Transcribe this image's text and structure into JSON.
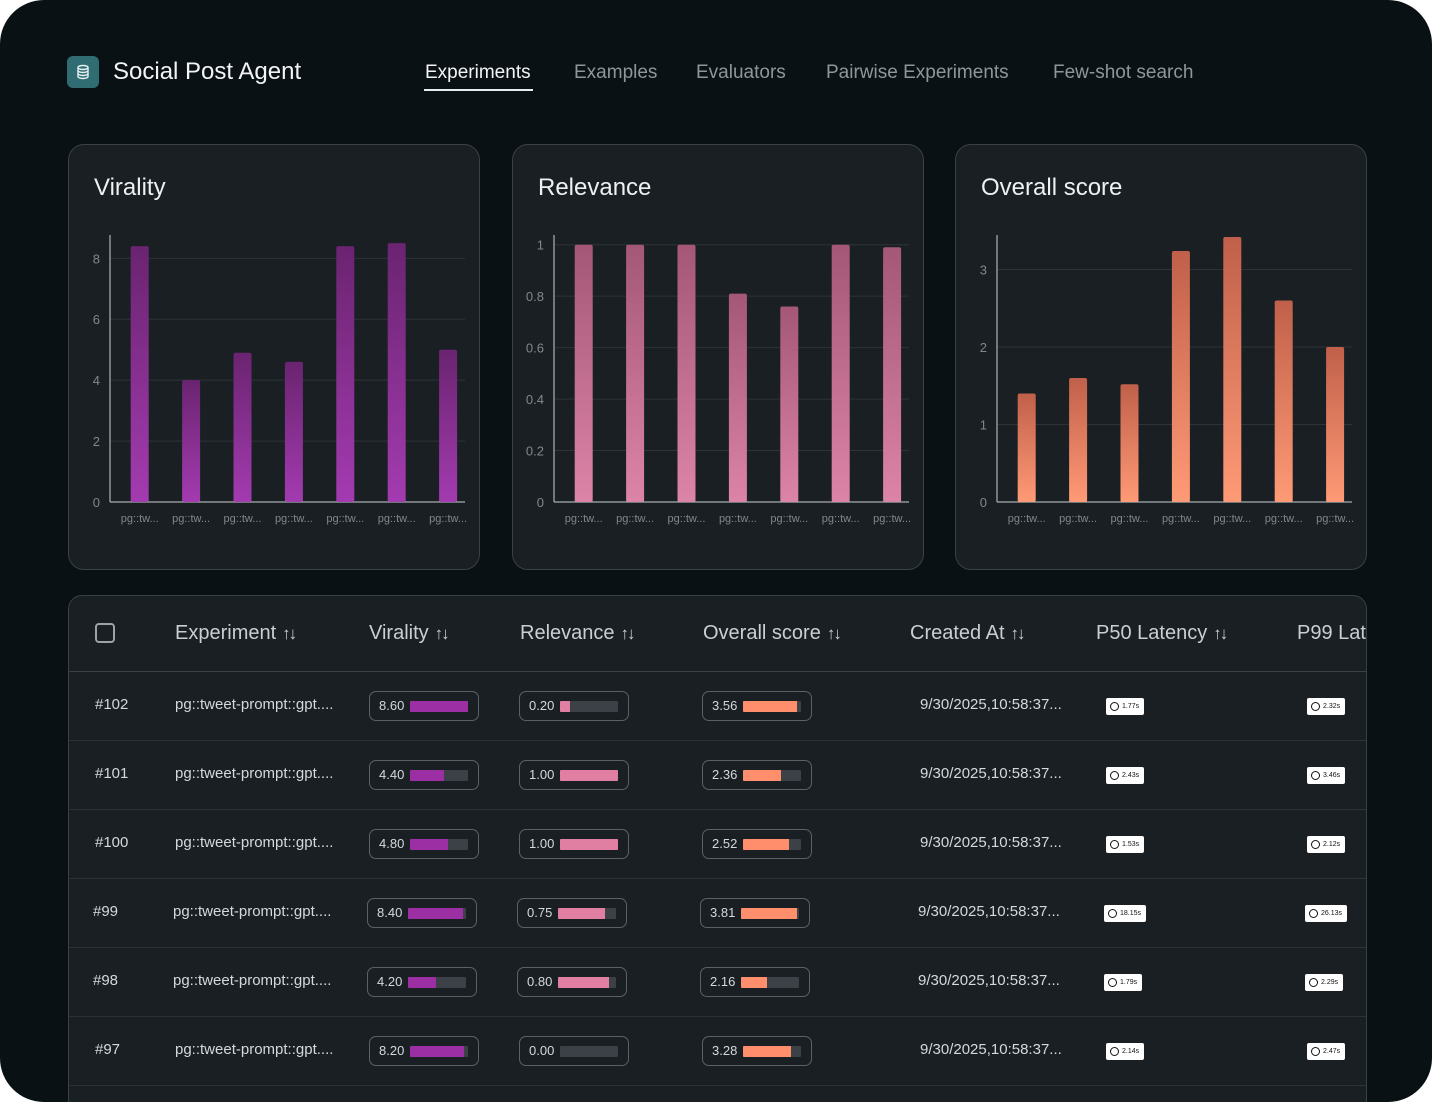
{
  "app": {
    "title": "Social Post Agent",
    "logo_icon": "database-icon"
  },
  "tabs": [
    {
      "label": "Experiments",
      "active": true
    },
    {
      "label": "Examples",
      "active": false
    },
    {
      "label": "Evaluators",
      "active": false
    },
    {
      "label": "Pairwise Experiments",
      "active": false
    },
    {
      "label": "Few-shot search",
      "active": false
    }
  ],
  "charts": {
    "virality": {
      "title": "Virality"
    },
    "relevance": {
      "title": "Relevance"
    },
    "overall": {
      "title": "Overall score"
    }
  },
  "chart_data": [
    {
      "type": "bar",
      "title": "Virality",
      "categories": [
        "pg::tw...",
        "pg::tw...",
        "pg::tw...",
        "pg::tw...",
        "pg::tw...",
        "pg::tw...",
        "pg::tw..."
      ],
      "values": [
        8.4,
        4.0,
        4.9,
        4.6,
        8.4,
        8.5,
        5.0
      ],
      "ylim": [
        0,
        8.7
      ],
      "yticks": [
        "0",
        "2",
        "4",
        "6",
        "8"
      ],
      "ytick_values": [
        0,
        2,
        4,
        6,
        8
      ],
      "grid": true,
      "colors": [
        "#a33bb0",
        "#6a2470"
      ]
    },
    {
      "type": "bar",
      "title": "Relevance",
      "categories": [
        "pg::tw...",
        "pg::tw...",
        "pg::tw...",
        "pg::tw...",
        "pg::tw...",
        "pg::tw...",
        "pg::tw..."
      ],
      "values": [
        1.0,
        1.0,
        1.0,
        0.81,
        0.76,
        1.0,
        0.99
      ],
      "ylim": [
        0,
        1.03
      ],
      "yticks": [
        "0",
        "0.2",
        "0.4",
        "0.6",
        "0.8",
        "1"
      ],
      "ytick_values": [
        0,
        0.2,
        0.4,
        0.6,
        0.8,
        1
      ],
      "grid": true,
      "colors": [
        "#dc84a8",
        "#a45777"
      ]
    },
    {
      "type": "bar",
      "title": "Overall score",
      "categories": [
        "pg::tw...",
        "pg::tw...",
        "pg::tw...",
        "pg::tw...",
        "pg::tw...",
        "pg::tw...",
        "pg::tw..."
      ],
      "values": [
        1.4,
        1.6,
        1.52,
        3.24,
        3.42,
        2.6,
        2.0
      ],
      "ylim": [
        0,
        3.42
      ],
      "yticks": [
        "0",
        "1",
        "2",
        "3"
      ],
      "ytick_values": [
        0,
        1,
        2,
        3
      ],
      "grid": true,
      "colors": [
        "#ff9a76",
        "#c0604a"
      ]
    }
  ],
  "table": {
    "columns": [
      "Experiment",
      "Virality",
      "Relevance",
      "Overall score",
      "Created At",
      "P50 Latency",
      "P99 Lat"
    ],
    "colors": {
      "virality": "#9b2fa3",
      "relevance": "#e07fa2",
      "overall": "#ff8f6c"
    },
    "rows": [
      {
        "id": "#102",
        "experiment": "pg::tweet-prompt::gpt....",
        "virality": "8.60",
        "virality_frac": 1.0,
        "relevance": "0.20",
        "relevance_frac": 0.17,
        "overall": "3.56",
        "overall_frac": 0.93,
        "created": "9/30/2025,10:58:37...",
        "p50": "1.77s",
        "p99": "2.32s"
      },
      {
        "id": "#101",
        "experiment": "pg::tweet-prompt::gpt....",
        "virality": "4.40",
        "virality_frac": 0.58,
        "relevance": "1.00",
        "relevance_frac": 1.0,
        "overall": "2.36",
        "overall_frac": 0.66,
        "created": "9/30/2025,10:58:37...",
        "p50": "2.43s",
        "p99": "3.46s"
      },
      {
        "id": "#100",
        "experiment": "pg::tweet-prompt::gpt....",
        "virality": "4.80",
        "virality_frac": 0.65,
        "relevance": "1.00",
        "relevance_frac": 1.0,
        "overall": "2.52",
        "overall_frac": 0.79,
        "created": "9/30/2025,10:58:37...",
        "p50": "1.53s",
        "p99": "2.12s"
      },
      {
        "id": "#99",
        "experiment": "pg::tweet-prompt::gpt....",
        "virality": "8.40",
        "virality_frac": 0.95,
        "relevance": "0.75",
        "relevance_frac": 0.81,
        "overall": "3.81",
        "overall_frac": 0.97,
        "created": "9/30/2025,10:58:37...",
        "p50": "18.15s",
        "p99": "26.13s"
      },
      {
        "id": "#98",
        "experiment": "pg::tweet-prompt::gpt....",
        "virality": "4.20",
        "virality_frac": 0.48,
        "relevance": "0.80",
        "relevance_frac": 0.88,
        "overall": "2.16",
        "overall_frac": 0.45,
        "created": "9/30/2025,10:58:37...",
        "p50": "1.79s",
        "p99": "2.29s"
      },
      {
        "id": "#97",
        "experiment": "pg::tweet-prompt::gpt....",
        "virality": "8.20",
        "virality_frac": 0.93,
        "relevance": "0.00",
        "relevance_frac": 0.0,
        "overall": "3.28",
        "overall_frac": 0.83,
        "created": "9/30/2025,10:58:37...",
        "p50": "2.14s",
        "p99": "2.47s"
      }
    ]
  }
}
